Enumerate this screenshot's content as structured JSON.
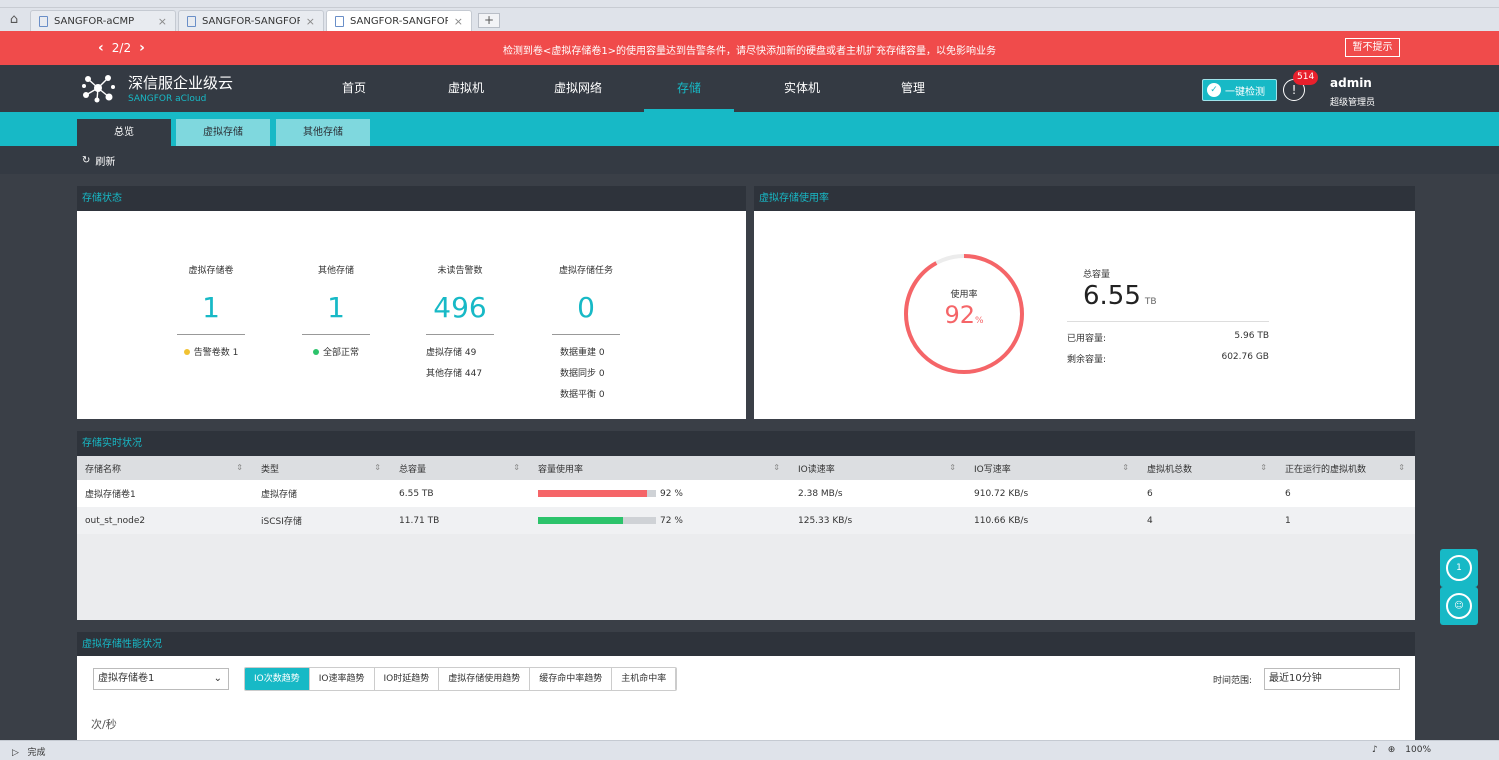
{
  "browser": {
    "tabs": [
      {
        "title": "SANGFOR-aCMP",
        "active": false
      },
      {
        "title": "SANGFOR-SANGFOR",
        "active": false
      },
      {
        "title": "SANGFOR-SANGFOR",
        "active": true
      }
    ],
    "new_tab": "+",
    "status_left": "完成",
    "zoom": "100%"
  },
  "alert": {
    "pager": "2/2",
    "message": "检测到卷<虚拟存储卷1>的使用容量达到告警条件，请尽快添加新的硬盘或者主机扩充存储容量，以免影响业务",
    "dismiss": "暂不提示"
  },
  "header": {
    "logo_cn": "深信服企业级云",
    "logo_en": "SANGFOR aCloud",
    "nav": [
      "首页",
      "虚拟机",
      "虚拟网络",
      "存储",
      "实体机",
      "管理"
    ],
    "active_nav": "存储",
    "check_button": "一键检测",
    "alarm_count": "514",
    "user": "admin",
    "role": "超级管理员"
  },
  "subnav": {
    "tabs": [
      "总览",
      "虚拟存储",
      "其他存储"
    ],
    "active": "总览"
  },
  "toolbar": {
    "refresh": "刷新"
  },
  "storage_status": {
    "title": "存储状态",
    "stats": [
      {
        "label": "虚拟存储卷",
        "value": "1"
      },
      {
        "label": "其他存储",
        "value": "1"
      },
      {
        "label": "未读告警数",
        "value": "496"
      },
      {
        "label": "虚拟存储任务",
        "value": "0"
      }
    ],
    "alarm_vols": "告警卷数  1",
    "all_normal": "全部正常",
    "unread_virtual": "虚拟存储  49",
    "unread_other": "其他存储  447",
    "task_rebuild": "数据重建   0",
    "task_sync": "数据同步   0",
    "task_balance": "数据平衡   0"
  },
  "usage": {
    "title": "虚拟存储使用率",
    "gauge_label": "使用率",
    "gauge_value": "92",
    "gauge_unit": "%",
    "gauge_fraction": 0.92,
    "total_label": "总容量",
    "total_value": "6.55",
    "total_unit": "TB",
    "used_label": "已用容量:",
    "used_value": "5.96 TB",
    "free_label": "剩余容量:",
    "free_value": "602.76 GB"
  },
  "realtime": {
    "title": "存储实时状况",
    "columns": [
      "存储名称",
      "类型",
      "总容量",
      "容量使用率",
      "IO读速率",
      "IO写速率",
      "虚拟机总数",
      "正在运行的虚拟机数"
    ],
    "rows": [
      {
        "name": "虚拟存储卷1",
        "type": "虚拟存储",
        "total": "6.55 TB",
        "usage": "92 %",
        "usage_frac": 0.92,
        "bar_color": "#f56568",
        "read": "2.38 MB/s",
        "write": "910.72 KB/s",
        "vms": "6",
        "running": "6"
      },
      {
        "name": "out_st_node2",
        "type": "iSCSI存储",
        "total": "11.71 TB",
        "usage": "72 %",
        "usage_frac": 0.72,
        "bar_color": "#2cc36b",
        "read": "125.33 KB/s",
        "write": "110.66 KB/s",
        "vms": "4",
        "running": "1"
      }
    ]
  },
  "perf": {
    "title": "虚拟存储性能状况",
    "volume": "虚拟存储卷1",
    "tabs": [
      "IO次数趋势",
      "IO速率趋势",
      "IO时延趋势",
      "虚拟存储使用趋势",
      "缓存命中率趋势",
      "主机命中率"
    ],
    "active_tab": "IO次数趋势",
    "range_label": "时间范围:",
    "range_value": "最近10分钟",
    "unit": "次/秒"
  },
  "side": {
    "notify": "1"
  }
}
